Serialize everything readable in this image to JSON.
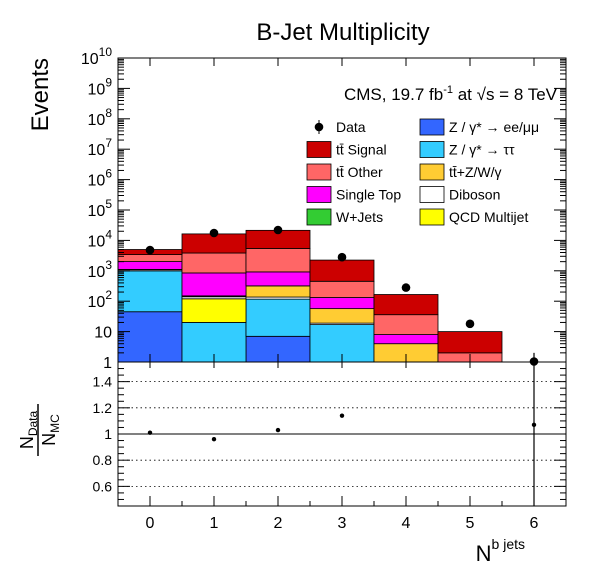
{
  "chart_data": [
    {
      "type": "bar",
      "stacked": true,
      "title": "B-Jet Multiplicity",
      "annotation": {
        "prefix": "CMS, 19.7 fb",
        "lumi_sup": "-1",
        "mid": " at ",
        "sqrt": "√",
        "energy": "s =  8 TeV"
      },
      "ylabel": "Events",
      "xlabel": "N",
      "xlabel_sup": "b jets",
      "yscale": "log",
      "ylim": [
        1,
        10000000000
      ],
      "y_ticks": [
        {
          "value": 1,
          "label": "1"
        },
        {
          "value": 10,
          "label": "10"
        },
        {
          "value": 100,
          "base": "10",
          "exp": "2"
        },
        {
          "value": 1000,
          "base": "10",
          "exp": "3"
        },
        {
          "value": 10000,
          "base": "10",
          "exp": "4"
        },
        {
          "value": 100000,
          "base": "10",
          "exp": "5"
        },
        {
          "value": 1000000,
          "base": "10",
          "exp": "6"
        },
        {
          "value": 10000000,
          "base": "10",
          "exp": "7"
        },
        {
          "value": 100000000,
          "base": "10",
          "exp": "8"
        },
        {
          "value": 1000000000,
          "base": "10",
          "exp": "9"
        },
        {
          "value": 10000000000,
          "base": "10",
          "exp": "10"
        }
      ],
      "categories": [
        "0",
        "1",
        "2",
        "3",
        "4",
        "5",
        "6"
      ],
      "xlim": [
        -0.5,
        6.5
      ],
      "series": [
        {
          "name": "Z / γ* → ee/μμ",
          "color": "#3366ff",
          "values": [
            45,
            0,
            7,
            0,
            0,
            0,
            0
          ]
        },
        {
          "name": "Z / γ* → ττ",
          "color": "#33ccff",
          "values": [
            950,
            20,
            110,
            17,
            0,
            0,
            0
          ]
        },
        {
          "name": "QCD Multijet",
          "color": "#ffff00",
          "values": [
            0,
            100,
            0,
            0,
            0,
            0,
            0
          ]
        },
        {
          "name": "Diboson",
          "color": "#ffffff",
          "values": [
            90,
            20,
            20,
            2,
            0,
            0,
            0
          ]
        },
        {
          "name": "tt̄+Z/W/γ",
          "color": "#ffcc33",
          "values": [
            3,
            5,
            180,
            38,
            4,
            0,
            0
          ]
        },
        {
          "name": "W+Jets",
          "color": "#33cc33",
          "values": [
            25,
            5,
            3,
            0,
            0,
            0,
            0
          ]
        },
        {
          "name": "Single Top",
          "color": "#ff00ff",
          "values": [
            900,
            700,
            600,
            75,
            4,
            0,
            0
          ]
        },
        {
          "name": "tt̄ Other",
          "color": "#ff6666",
          "values": [
            1400,
            3000,
            4500,
            320,
            28,
            2,
            0
          ]
        },
        {
          "name": "tt̄ Signal",
          "color": "#cc0000",
          "values": [
            1600,
            12500,
            16000,
            1800,
            130,
            8,
            0
          ]
        }
      ],
      "data": {
        "name": "Data",
        "values": [
          4800,
          17500,
          22000,
          2800,
          280,
          18,
          1
        ],
        "err": [
          null,
          null,
          null,
          null,
          null,
          null,
          [
            0,
            2
          ]
        ]
      },
      "legend": {
        "placement": "top-right",
        "columns": [
          [
            {
              "marker": "dot",
              "label": "Data"
            },
            {
              "color": "#cc0000",
              "label": "tt̄ Signal"
            },
            {
              "color": "#ff6666",
              "label": "tt̄ Other"
            },
            {
              "color": "#ff00ff",
              "label": "Single Top"
            },
            {
              "color": "#33cc33",
              "label": "W+Jets"
            }
          ],
          [
            {
              "color": "#3366ff",
              "label": "Z / γ* → ee/μμ"
            },
            {
              "color": "#33ccff",
              "label": "Z / γ* → ττ"
            },
            {
              "color": "#ffcc33",
              "label": "tt̄+Z/W/γ"
            },
            {
              "color": "#ffffff",
              "label": "Diboson"
            },
            {
              "color": "#ffff00",
              "label": "QCD Multijet"
            }
          ]
        ]
      }
    },
    {
      "type": "scatter",
      "ylabel_num": "N",
      "ylabel_num_sub": "Data",
      "ylabel_den": "N",
      "ylabel_den_sub": "MC",
      "ylim": [
        0.45,
        1.55
      ],
      "y_ticks": [
        "0.6",
        "0.8",
        "1",
        "1.2",
        "1.4"
      ],
      "x": [
        0,
        1,
        2,
        3,
        6
      ],
      "y": [
        1.01,
        0.96,
        1.03,
        1.14,
        1.07
      ],
      "err": [
        0,
        0,
        0,
        0,
        1.1
      ],
      "gridlines": [
        0.6,
        0.8,
        1.2,
        1.4
      ],
      "reference_line": 1,
      "grid": "dotted horizontal"
    }
  ]
}
